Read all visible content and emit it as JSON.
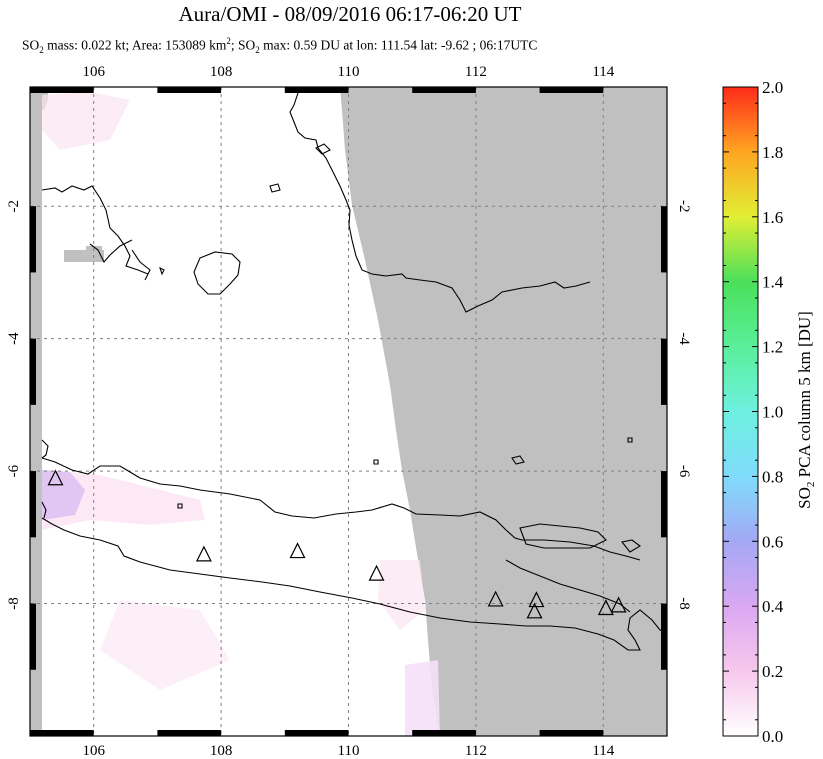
{
  "title": "Aura/OMI - 08/09/2016 06:17-06:20 UT",
  "subtitle": {
    "p1": "SO",
    "p1_sub": "2",
    "p2": " mass: 0.022 kt; Area: 153089 km",
    "p2_sup": "2",
    "p3": "; SO",
    "p3_sub": "2",
    "p4": " max: 0.59 DU at lon: 111.54 lat: -9.62 ; 06:17UTC"
  },
  "colors": {
    "no_data": "#c0c0c0",
    "coast": "#000000",
    "grid": "#808080",
    "low_so2": "#fbe4f2",
    "mid_so2": "#dcc0f2"
  },
  "chart_data": {
    "type": "heatmap",
    "title": "Aura/OMI - 08/09/2016 06:17-06:20 UT",
    "xlim": [
      105.0,
      115.0
    ],
    "ylim": [
      -10.0,
      -0.2
    ],
    "x_ticks": [
      106,
      108,
      110,
      112,
      114
    ],
    "x_tick_labels": [
      "106",
      "108",
      "110",
      "112",
      "114"
    ],
    "y_ticks": [
      -2,
      -4,
      -6,
      -8
    ],
    "y_tick_labels": [
      "-2",
      "-4",
      "-6",
      "-8"
    ],
    "grid": true,
    "colorbar": {
      "label": "SO2 PCA column 5 km [DU]",
      "label_main": "SO",
      "label_sub": "2",
      "label_rest": " PCA column 5 km [DU]",
      "min": 0.0,
      "max": 2.0,
      "ticks": [
        0.0,
        0.2,
        0.4,
        0.6,
        0.8,
        1.0,
        1.2,
        1.4,
        1.6,
        1.8,
        2.0
      ],
      "tick_labels": [
        "0.0",
        "0.2",
        "0.4",
        "0.6",
        "0.8",
        "1.0",
        "1.2",
        "1.4",
        "1.6",
        "1.8",
        "2.0"
      ]
    },
    "max_so2": {
      "value": 0.59,
      "unit": "DU",
      "lon": 111.54,
      "lat": -9.62
    },
    "volcanoes": [
      {
        "lon": 105.4,
        "lat": -6.1
      },
      {
        "lon": 107.73,
        "lat": -7.25
      },
      {
        "lon": 109.2,
        "lat": -7.2
      },
      {
        "lon": 110.44,
        "lat": -7.54
      },
      {
        "lon": 112.31,
        "lat": -7.93
      },
      {
        "lon": 112.95,
        "lat": -7.94
      },
      {
        "lon": 112.92,
        "lat": -8.11
      },
      {
        "lon": 114.04,
        "lat": -8.06
      },
      {
        "lon": 114.24,
        "lat": -8.02
      }
    ]
  }
}
